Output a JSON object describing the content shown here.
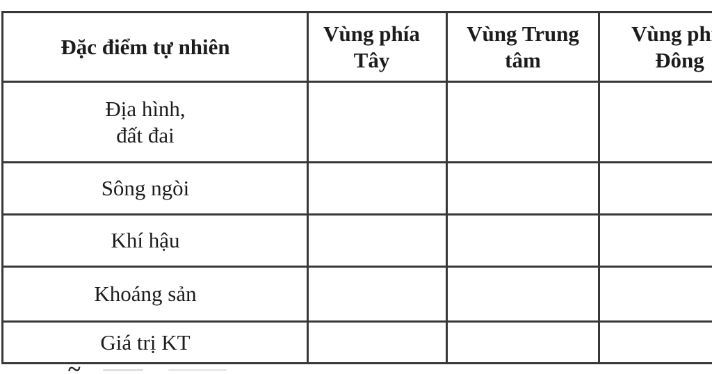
{
  "table": {
    "header": {
      "col1": {
        "line1": "Đặc điểm tự nhiên"
      },
      "col2": {
        "line1": "Vùng phía",
        "line2": "Tây"
      },
      "col3": {
        "line1": "Vùng Trung",
        "line2": "tâm"
      },
      "col4": {
        "line1": "Vùng phía",
        "line2": "Đông"
      }
    },
    "rows": {
      "terrain": {
        "line1": "Địa hình,",
        "line2": "đất đai",
        "west": "",
        "center": "",
        "east": ""
      },
      "rivers": {
        "label": "Sông ngòi",
        "west": "",
        "center": "",
        "east": ""
      },
      "climate": {
        "label": "Khí hậu",
        "west": "",
        "center": "",
        "east": ""
      },
      "minerals": {
        "label": "Khoáng sản",
        "west": "",
        "center": "",
        "east": ""
      },
      "economic": {
        "label": "Giá trị KT",
        "west": "",
        "center": "",
        "east": ""
      }
    }
  },
  "footer": {
    "fragment": "~"
  },
  "colors": {
    "border": "#383838",
    "text": "#1c1c1c",
    "background": "#ffffff"
  }
}
